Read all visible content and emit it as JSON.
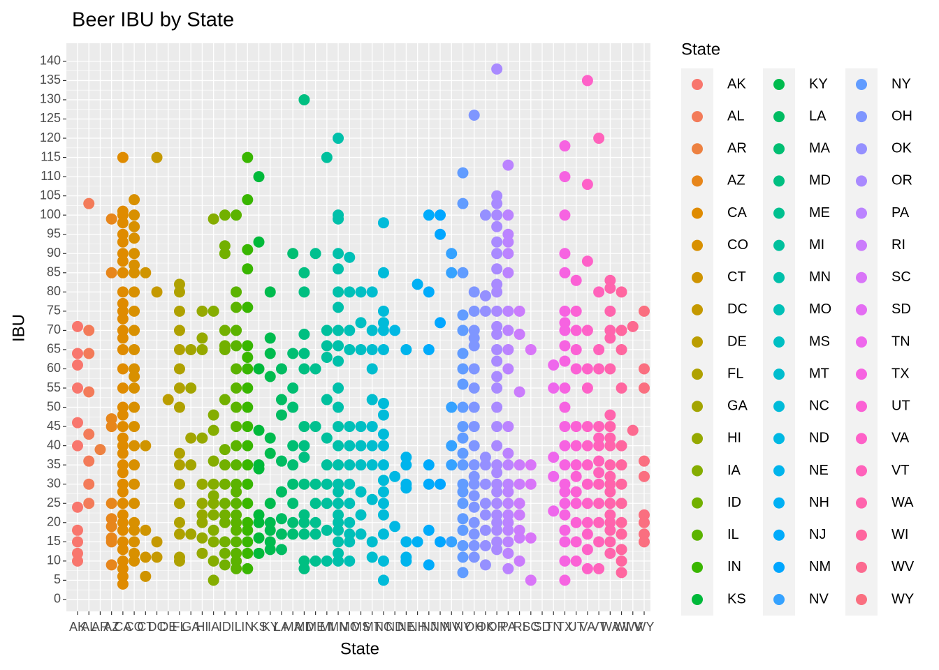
{
  "chart_data": {
    "type": "strip",
    "title": "Beer IBU by State",
    "x_label": "State",
    "y_label": "IBU",
    "legend_title": "State",
    "legend_position": "right",
    "grid": true,
    "ylim": [
      -3.1,
      144.7
    ],
    "yticks": [
      0,
      5,
      10,
      15,
      20,
      25,
      30,
      35,
      40,
      45,
      50,
      55,
      60,
      65,
      70,
      75,
      80,
      85,
      90,
      95,
      100,
      105,
      110,
      115,
      120,
      125,
      130,
      135,
      140
    ],
    "categories": [
      "AK",
      "AL",
      "AR",
      "AZ",
      "CA",
      "CO",
      "CT",
      "DC",
      "DE",
      "FL",
      "GA",
      "HI",
      "IA",
      "ID",
      "IL",
      "IN",
      "KS",
      "KY",
      "LA",
      "MA",
      "MD",
      "ME",
      "MI",
      "MN",
      "MO",
      "MS",
      "MT",
      "NC",
      "ND",
      "NE",
      "NH",
      "NJ",
      "NM",
      "NV",
      "NY",
      "OH",
      "OK",
      "OR",
      "PA",
      "RI",
      "SC",
      "SD",
      "TN",
      "TX",
      "UT",
      "VA",
      "VT",
      "WA",
      "WI",
      "WV",
      "WY"
    ],
    "series": [
      {
        "name": "AK",
        "color": "#F8766D",
        "values": [
          71,
          64,
          61,
          55,
          46,
          40,
          24,
          18,
          15,
          12,
          10
        ]
      },
      {
        "name": "AL",
        "color": "#F37B59",
        "values": [
          103,
          70,
          64,
          54,
          43,
          36,
          30,
          25
        ]
      },
      {
        "name": "AR",
        "color": "#ED8141",
        "values": [
          39
        ]
      },
      {
        "name": "AZ",
        "color": "#E7861B",
        "values": [
          99,
          85,
          47,
          45,
          25,
          21,
          19,
          16,
          15,
          9
        ]
      },
      {
        "name": "CA",
        "color": "#DF8B00",
        "values": [
          115,
          101,
          100,
          98,
          95,
          93,
          90,
          88,
          85,
          80,
          77,
          75,
          73,
          70,
          68,
          65,
          60,
          55,
          50,
          48,
          45,
          42,
          40,
          38,
          35,
          33,
          30,
          28,
          25,
          22,
          20,
          18,
          15,
          13,
          10,
          8,
          6,
          4
        ]
      },
      {
        "name": "CO",
        "color": "#D89000",
        "values": [
          104,
          100,
          97,
          94,
          90,
          87,
          85,
          80,
          75,
          70,
          65,
          60,
          58,
          55,
          50,
          45,
          40,
          35,
          30,
          25,
          20,
          18,
          15,
          12,
          10
        ]
      },
      {
        "name": "CT",
        "color": "#CF9400",
        "values": [
          85,
          40,
          18,
          11,
          6
        ]
      },
      {
        "name": "DC",
        "color": "#C59900",
        "values": [
          115,
          80,
          15,
          11
        ]
      },
      {
        "name": "DE",
        "color": "#BB9D00",
        "values": [
          52
        ]
      },
      {
        "name": "FL",
        "color": "#AFA100",
        "values": [
          82,
          80,
          75,
          70,
          65,
          60,
          55,
          50,
          38,
          35,
          30,
          25,
          20,
          17,
          11,
          10
        ]
      },
      {
        "name": "GA",
        "color": "#A3A500",
        "values": [
          65,
          55,
          42,
          35,
          17
        ]
      },
      {
        "name": "HI",
        "color": "#95A900",
        "values": [
          75,
          68,
          65,
          42,
          30,
          25,
          22,
          20,
          16,
          12
        ]
      },
      {
        "name": "IA",
        "color": "#85AD00",
        "values": [
          99,
          75,
          48,
          44,
          36,
          30,
          27,
          25,
          22,
          18,
          15,
          10,
          5
        ]
      },
      {
        "name": "ID",
        "color": "#72B000",
        "values": [
          100,
          92,
          90,
          70,
          66,
          65,
          52,
          39,
          35,
          30,
          25,
          22,
          20,
          15,
          12,
          9
        ]
      },
      {
        "name": "IL",
        "color": "#5BB300",
        "values": [
          100,
          80,
          76,
          70,
          66,
          60,
          55,
          50,
          45,
          40,
          35,
          30,
          28,
          25,
          22,
          20,
          18,
          15,
          12,
          10,
          8
        ]
      },
      {
        "name": "IN",
        "color": "#39B600",
        "values": [
          115,
          104,
          91,
          86,
          76,
          66,
          63,
          60,
          55,
          50,
          45,
          40,
          35,
          30,
          25,
          20,
          18,
          15,
          12,
          8
        ]
      },
      {
        "name": "KS",
        "color": "#00B93A",
        "values": [
          110,
          93,
          60,
          44,
          35,
          34,
          22,
          20,
          16,
          12
        ]
      },
      {
        "name": "KY",
        "color": "#00BB4E",
        "values": [
          80,
          68,
          64,
          58,
          42,
          38,
          25,
          20,
          18,
          15,
          13
        ]
      },
      {
        "name": "LA",
        "color": "#00BC62",
        "values": [
          60,
          52,
          48,
          36,
          28,
          21,
          17,
          13
        ]
      },
      {
        "name": "MA",
        "color": "#00BE72",
        "values": [
          90,
          64,
          55,
          50,
          40,
          35,
          30,
          25,
          20,
          17
        ]
      },
      {
        "name": "MD",
        "color": "#00BF81",
        "values": [
          130,
          85,
          80,
          69,
          64,
          60,
          45,
          40,
          37,
          30,
          22,
          20,
          17,
          10,
          8
        ]
      },
      {
        "name": "ME",
        "color": "#00C08F",
        "values": [
          90,
          60,
          45,
          30,
          25,
          20,
          17,
          10
        ]
      },
      {
        "name": "MI",
        "color": "#00C09D",
        "values": [
          115,
          70,
          66,
          63,
          52,
          42,
          35,
          30,
          25,
          18,
          10
        ]
      },
      {
        "name": "MN",
        "color": "#00C0AA",
        "values": [
          120,
          100,
          99,
          90,
          86,
          80,
          76,
          70,
          66,
          62,
          55,
          50,
          45,
          40,
          35,
          30,
          28,
          25,
          22,
          20,
          18,
          15,
          12,
          10
        ]
      },
      {
        "name": "MO",
        "color": "#00C0B7",
        "values": [
          89,
          80,
          70,
          65,
          45,
          40,
          35,
          30,
          25,
          20,
          17,
          15,
          10
        ]
      },
      {
        "name": "MS",
        "color": "#00BFC3",
        "values": [
          80,
          72,
          65,
          45,
          40,
          35,
          28,
          22,
          17
        ]
      },
      {
        "name": "MT",
        "color": "#00BDCE",
        "values": [
          80,
          70,
          65,
          60,
          52,
          45,
          40,
          35,
          26,
          15,
          11
        ]
      },
      {
        "name": "NC",
        "color": "#00BBD9",
        "values": [
          98,
          85,
          75,
          72,
          70,
          65,
          51,
          48,
          43,
          40,
          35,
          31,
          28,
          25,
          22,
          17,
          10,
          5
        ]
      },
      {
        "name": "ND",
        "color": "#00B8E3",
        "values": [
          70,
          32,
          19
        ]
      },
      {
        "name": "NE",
        "color": "#00B4EC",
        "values": [
          65,
          37,
          35,
          30,
          29,
          15,
          11,
          10
        ]
      },
      {
        "name": "NH",
        "color": "#00B0F4",
        "values": [
          82,
          15
        ]
      },
      {
        "name": "NJ",
        "color": "#00ABFB",
        "values": [
          100,
          80,
          65,
          35,
          30,
          18,
          9
        ]
      },
      {
        "name": "NM",
        "color": "#00A6FF",
        "values": [
          100,
          95,
          72,
          30,
          15
        ]
      },
      {
        "name": "NV",
        "color": "#35A2FF",
        "values": [
          90,
          85,
          50,
          40,
          35,
          15
        ]
      },
      {
        "name": "NY",
        "color": "#619CFF",
        "values": [
          111,
          103,
          85,
          74,
          70,
          64,
          60,
          56,
          50,
          45,
          42,
          38,
          35,
          30,
          28,
          25,
          21,
          18,
          14,
          11,
          7
        ]
      },
      {
        "name": "OH",
        "color": "#7F96FF",
        "values": [
          126,
          80,
          75,
          70,
          68,
          66,
          60,
          55,
          50,
          45,
          40,
          35,
          32,
          30,
          27,
          24,
          20,
          17,
          14,
          11
        ]
      },
      {
        "name": "OK",
        "color": "#9590FF",
        "values": [
          100,
          79,
          75,
          37,
          35,
          30,
          25,
          22,
          18,
          14,
          9
        ]
      },
      {
        "name": "OR",
        "color": "#A98AFF",
        "values": [
          138,
          105,
          103,
          100,
          97,
          93,
          90,
          86,
          82,
          80,
          75,
          71,
          69,
          65,
          62,
          58,
          55,
          50,
          45,
          40,
          35,
          33,
          30,
          28,
          25,
          22,
          20,
          18,
          15,
          13
        ]
      },
      {
        "name": "PA",
        "color": "#BB83FF",
        "values": [
          113,
          100,
          95,
          93,
          90,
          85,
          75,
          70,
          65,
          60,
          45,
          38,
          35,
          30,
          28,
          25,
          22,
          20,
          18,
          15,
          12,
          8
        ]
      },
      {
        "name": "RI",
        "color": "#CB7CFC",
        "values": [
          75,
          69,
          54,
          35,
          30,
          25,
          22,
          18,
          16,
          10
        ]
      },
      {
        "name": "SC",
        "color": "#D975F8",
        "values": [
          65,
          35,
          30,
          16,
          5
        ]
      },
      {
        "name": "SD",
        "color": "#E46DF3",
        "values": []
      },
      {
        "name": "TN",
        "color": "#EE67EC",
        "values": [
          61,
          55,
          37,
          32,
          23
        ]
      },
      {
        "name": "TX",
        "color": "#F663E1",
        "values": [
          118,
          110,
          100,
          90,
          85,
          75,
          72,
          70,
          66,
          62,
          55,
          50,
          45,
          40,
          35,
          30,
          28,
          25,
          22,
          18,
          15,
          10,
          5
        ]
      },
      {
        "name": "UT",
        "color": "#FB61D5",
        "values": [
          83,
          75,
          70,
          65,
          60,
          45,
          40,
          35,
          32,
          28,
          25,
          20,
          15,
          10
        ]
      },
      {
        "name": "VA",
        "color": "#FE61C8",
        "values": [
          135,
          108,
          88,
          70,
          60,
          55,
          45,
          40,
          35,
          30,
          25,
          20,
          17,
          13,
          8
        ]
      },
      {
        "name": "VT",
        "color": "#FF62BB",
        "values": [
          120,
          80,
          65,
          60,
          45,
          42,
          40,
          36,
          33,
          30,
          25,
          20,
          15,
          8
        ]
      },
      {
        "name": "WA",
        "color": "#FF64AD",
        "values": [
          83,
          81,
          75,
          70,
          68,
          60,
          48,
          45,
          42,
          40,
          35,
          32,
          30,
          28,
          25,
          22,
          20,
          18,
          15,
          12
        ]
      },
      {
        "name": "WI",
        "color": "#FF669F",
        "values": [
          80,
          70,
          65,
          55,
          40,
          35,
          30,
          25,
          20,
          17,
          13,
          10,
          7
        ]
      },
      {
        "name": "WV",
        "color": "#FC6A90",
        "values": [
          71,
          44
        ]
      },
      {
        "name": "WY",
        "color": "#FA6F80",
        "values": [
          75,
          60,
          55,
          36,
          32,
          22,
          20,
          17,
          15
        ]
      }
    ]
  }
}
